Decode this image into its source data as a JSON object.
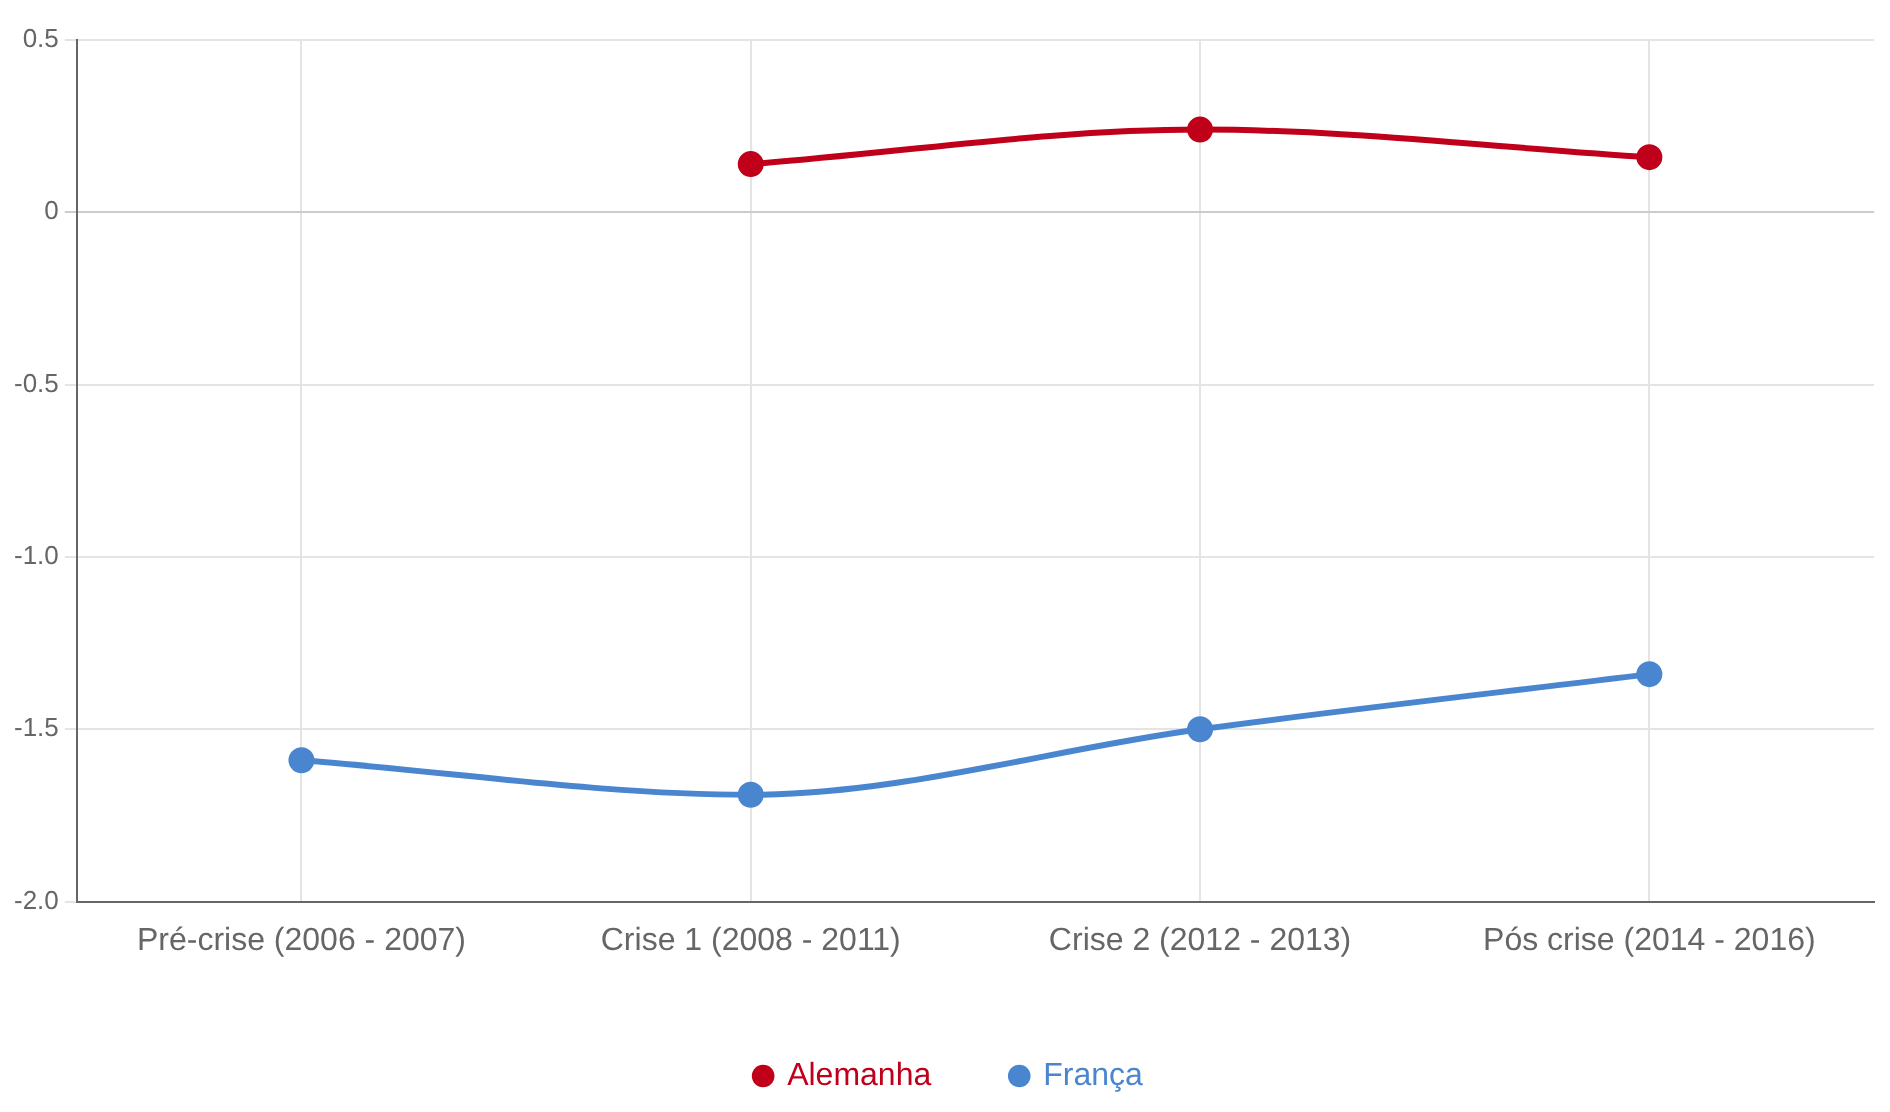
{
  "chart_data": {
    "type": "line",
    "categories": [
      "Pré-crise (2006 - 2007)",
      "Crise 1 (2008 - 2011)",
      "Crise 2 (2012 - 2013)",
      "Pós crise (2014 - 2016)"
    ],
    "series": [
      {
        "name": "Alemanha",
        "color": "#c0001a",
        "values": [
          null,
          0.14,
          0.24,
          0.16
        ]
      },
      {
        "name": "França",
        "color": "#4a86d0",
        "values": [
          -1.59,
          -1.69,
          -1.5,
          -1.34
        ]
      }
    ],
    "ylim": [
      -2,
      0.5
    ],
    "yticks": [
      {
        "value": -2,
        "label": "-2.0"
      },
      {
        "value": -1.5,
        "label": "-1.5"
      },
      {
        "value": -1,
        "label": "-1.0"
      },
      {
        "value": -0.5,
        "label": "-0.5"
      },
      0,
      0.5
    ],
    "grid": true,
    "legend": "bottom",
    "marker": "circle",
    "line_style": "solid"
  }
}
